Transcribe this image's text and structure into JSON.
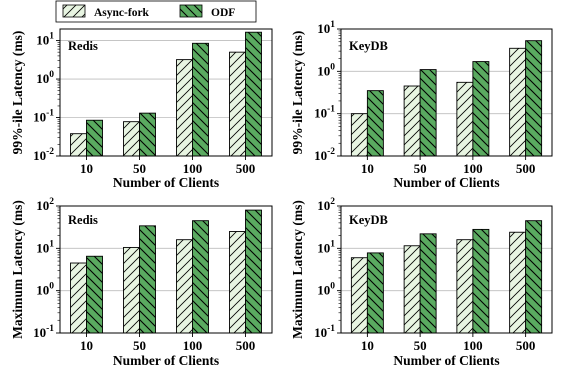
{
  "legend": {
    "items": [
      {
        "label": "Async-fork",
        "color": "#e8f5e2",
        "hatch": "sparse-diagonal"
      },
      {
        "label": "ODF",
        "color": "#5aaa60",
        "hatch": "dense-diagonal"
      }
    ]
  },
  "chart_data": [
    {
      "type": "bar",
      "panel_label": "Redis",
      "categories": [
        "10",
        "50",
        "100",
        "500"
      ],
      "series": [
        {
          "name": "Async-fork",
          "values": [
            0.038,
            0.078,
            3.2,
            5.0
          ]
        },
        {
          "name": "ODF",
          "values": [
            0.085,
            0.13,
            8.5,
            16.5
          ]
        }
      ],
      "xlabel": "Number of Clients",
      "ylabel": "99%-ile Latency (ms)",
      "yscale": "log",
      "ylim": [
        0.01,
        20
      ],
      "yticks": [
        {
          "exp": "-2"
        },
        {
          "exp": "-1"
        },
        {
          "exp": "0"
        },
        {
          "exp": "1"
        }
      ],
      "grid": "horizontal"
    },
    {
      "type": "bar",
      "panel_label": "KeyDB",
      "categories": [
        "10",
        "50",
        "100",
        "500"
      ],
      "series": [
        {
          "name": "Async-fork",
          "values": [
            0.1,
            0.45,
            0.55,
            3.5
          ]
        },
        {
          "name": "ODF",
          "values": [
            0.35,
            1.1,
            1.7,
            5.3
          ]
        }
      ],
      "xlabel": "Number of Clients",
      "ylabel": "99%-ile Latency (ms)",
      "yscale": "log",
      "ylim": [
        0.01,
        10
      ],
      "yticks": [
        {
          "exp": "-2"
        },
        {
          "exp": "-1"
        },
        {
          "exp": "0"
        },
        {
          "exp": "1"
        }
      ],
      "grid": "horizontal"
    },
    {
      "type": "bar",
      "panel_label": "Redis",
      "categories": [
        "10",
        "50",
        "100",
        "500"
      ],
      "series": [
        {
          "name": "Async-fork",
          "values": [
            4.5,
            10.5,
            16,
            25
          ]
        },
        {
          "name": "ODF",
          "values": [
            6.5,
            34,
            45,
            80
          ]
        }
      ],
      "xlabel": "Number of Clients",
      "ylabel": "Maximum Latency (ms)",
      "yscale": "log",
      "ylim": [
        0.1,
        100
      ],
      "yticks": [
        {
          "exp": "-1"
        },
        {
          "exp": "0"
        },
        {
          "exp": "1"
        },
        {
          "exp": "2"
        }
      ],
      "grid": "horizontal"
    },
    {
      "type": "bar",
      "panel_label": "KeyDB",
      "categories": [
        "10",
        "50",
        "100",
        "500"
      ],
      "series": [
        {
          "name": "Async-fork",
          "values": [
            6,
            11.5,
            16,
            24
          ]
        },
        {
          "name": "ODF",
          "values": [
            7.8,
            22,
            28,
            45
          ]
        }
      ],
      "xlabel": "Number of Clients",
      "ylabel": "Maximum Latency (ms)",
      "yscale": "log",
      "ylim": [
        0.1,
        100
      ],
      "yticks": [
        {
          "exp": "-1"
        },
        {
          "exp": "0"
        },
        {
          "exp": "1"
        },
        {
          "exp": "2"
        }
      ],
      "grid": "horizontal"
    }
  ]
}
